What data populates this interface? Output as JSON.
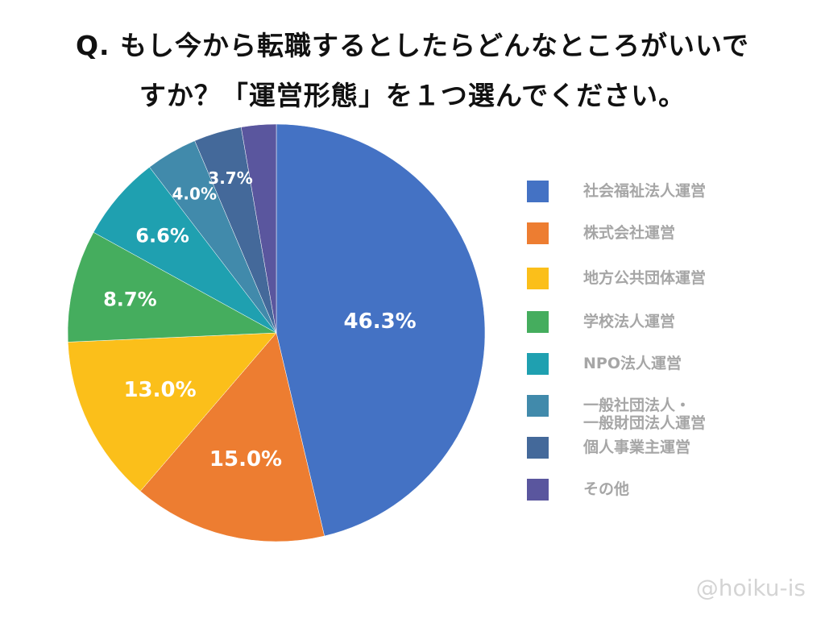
{
  "chart_data": {
    "type": "pie",
    "title": [
      "Q. もし今から転職するとしたらどんなところがいいで",
      "すか？「運営形態」を１つ選んでください。"
    ],
    "start_angle": "12 o'clock, clockwise",
    "legend_position": "right",
    "slices": [
      {
        "name": "社会福祉法人運営",
        "value": 46.3,
        "label": "46.3%",
        "color": "#4472c4"
      },
      {
        "name": "株式会社運営",
        "value": 15.0,
        "label": "15.0%",
        "color": "#ed7d31"
      },
      {
        "name": "地方公共団体運営",
        "value": 13.0,
        "label": "13.0%",
        "color": "#fbbf1a"
      },
      {
        "name": "学校法人運営",
        "value": 8.7,
        "label": "8.7%",
        "color": "#45ad5e"
      },
      {
        "name": "NPO法人運営",
        "value": 6.6,
        "label": "6.6%",
        "color": "#1fa0b0"
      },
      {
        "name": "一般社団法人・\n一般財団法人運営",
        "value": 4.0,
        "label": "4.0%",
        "color": "#418aab"
      },
      {
        "name": "個人事業主運営",
        "value": 3.7,
        "label": "3.7%",
        "color": "#44699a"
      },
      {
        "name": "その他",
        "value": null,
        "label": "",
        "color": "#5a569e"
      }
    ]
  },
  "watermark": "@hoiku-is"
}
